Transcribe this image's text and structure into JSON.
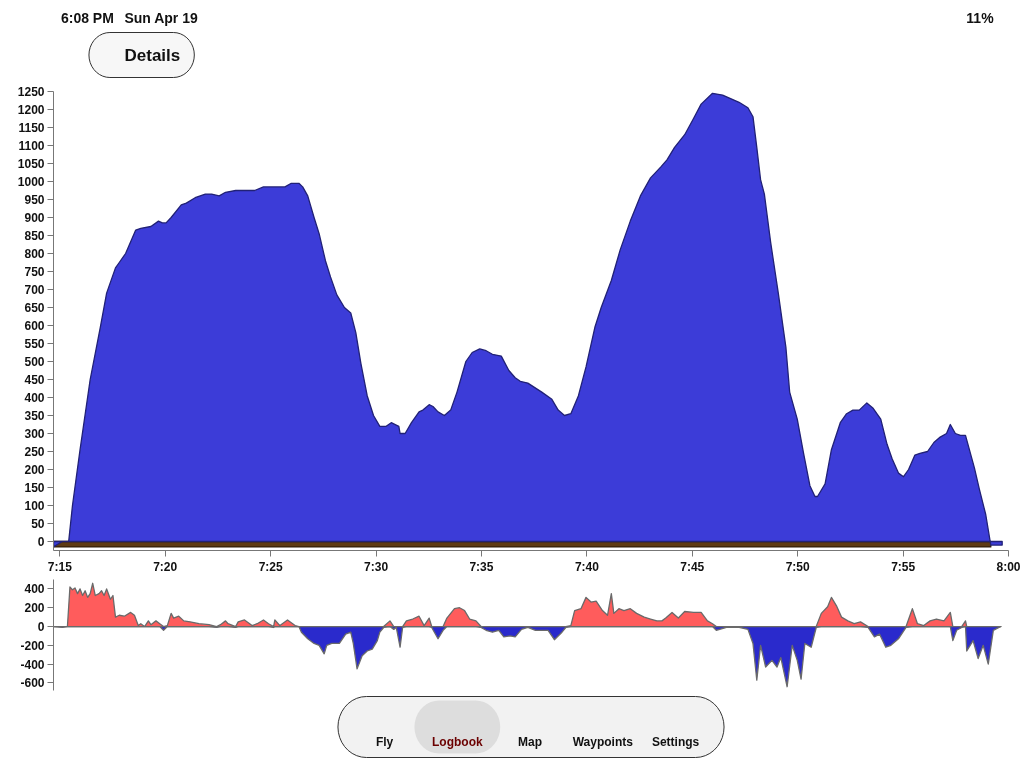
{
  "chart_data": [
    {
      "type": "area",
      "x": [
        7.245,
        7.252,
        7.256,
        7.257,
        7.26,
        7.266,
        7.274,
        7.282,
        7.287,
        7.294,
        7.297,
        7.302,
        7.31,
        7.314,
        7.322,
        7.328,
        7.331,
        7.334,
        7.338,
        7.346,
        7.35,
        7.357,
        7.365,
        7.37,
        7.376,
        7.381,
        7.389,
        7.396,
        7.404,
        7.411,
        7.42,
        7.428,
        7.433,
        7.439,
        7.442,
        7.446,
        7.451,
        7.455,
        7.46,
        7.464,
        7.469,
        7.475,
        7.48,
        7.484,
        7.488,
        7.493,
        7.498,
        7.503,
        7.508,
        7.512,
        7.518,
        7.519,
        7.523,
        7.528,
        7.534,
        7.537,
        7.542,
        7.545,
        7.549,
        7.554,
        7.559,
        7.564,
        7.571,
        7.576,
        7.582,
        7.587,
        7.592,
        7.599,
        7.605,
        7.61,
        7.614,
        7.62,
        7.631,
        7.639,
        7.644,
        7.649,
        7.654,
        7.66,
        7.666,
        7.673,
        7.678,
        7.686,
        7.693,
        7.701,
        7.709,
        7.717,
        7.725,
        7.73,
        7.736,
        7.744,
        7.751,
        7.757,
        7.766,
        7.774,
        7.787,
        7.794,
        7.798,
        7.801,
        7.804,
        7.807,
        7.812,
        7.818,
        7.824,
        7.827,
        7.833,
        7.838,
        7.843,
        7.847,
        7.849,
        7.855,
        7.86,
        7.867,
        7.872,
        7.877,
        7.882,
        7.888,
        7.893,
        7.899,
        7.904,
        7.908,
        7.913,
        7.917,
        7.921,
        7.926,
        7.93,
        7.936,
        7.941,
        7.946,
        7.951,
        7.954,
        7.958,
        7.962,
        7.966,
        7.973,
        7.977,
        7.982,
        7.986,
        7.995
      ],
      "series": [
        {
          "color": "#5e3a12",
          "x": [
            7.245,
            7.986
          ],
          "values": [
            -15,
            -15
          ]
        },
        {
          "color": "#3c3cd8",
          "values": [
            -15,
            0,
            0,
            0,
            100,
            255,
            450,
            595,
            690,
            760,
            775,
            800,
            865,
            870,
            875,
            890,
            885,
            885,
            900,
            935,
            940,
            955,
            965,
            965,
            960,
            970,
            975,
            975,
            975,
            985,
            985,
            985,
            995,
            995,
            985,
            960,
            900,
            855,
            780,
            735,
            685,
            650,
            635,
            580,
            495,
            405,
            350,
            320,
            320,
            330,
            320,
            300,
            300,
            330,
            360,
            365,
            380,
            375,
            360,
            350,
            365,
            415,
            500,
            525,
            535,
            530,
            520,
            515,
            475,
            455,
            445,
            440,
            415,
            395,
            365,
            350,
            355,
            405,
            485,
            595,
            650,
            725,
            810,
            890,
            960,
            1010,
            1040,
            1060,
            1095,
            1130,
            1175,
            1215,
            1245,
            1240,
            1220,
            1205,
            1180,
            1095,
            1005,
            965,
            830,
            690,
            540,
            415,
            340,
            245,
            155,
            125,
            125,
            160,
            255,
            330,
            355,
            365,
            365,
            385,
            370,
            340,
            270,
            230,
            190,
            180,
            200,
            240,
            245,
            250,
            275,
            290,
            300,
            325,
            300,
            295,
            295,
            205,
            145,
            75,
            -10,
            -10
          ]
        }
      ],
      "xlim": [
        7.245,
        8.0
      ],
      "ylim": [
        -25,
        1250
      ],
      "xticks": [
        {
          "value": 7.25,
          "label": "7:15"
        },
        {
          "value": 7.3333,
          "label": "7:20"
        },
        {
          "value": 7.4167,
          "label": "7:25"
        },
        {
          "value": 7.5,
          "label": "7:30"
        },
        {
          "value": 7.5833,
          "label": "7:35"
        },
        {
          "value": 7.6667,
          "label": "7:40"
        },
        {
          "value": 7.75,
          "label": "7:45"
        },
        {
          "value": 7.8333,
          "label": "7:50"
        },
        {
          "value": 7.9167,
          "label": "7:55"
        },
        {
          "value": 8.0,
          "label": "8:00"
        }
      ],
      "yticks": [
        0,
        50,
        100,
        150,
        200,
        250,
        300,
        350,
        400,
        450,
        500,
        550,
        600,
        650,
        700,
        750,
        800,
        850,
        900,
        950,
        1000,
        1050,
        1100,
        1150,
        1200,
        1250
      ],
      "annotations": [
        "6:08 PM",
        "Sun Apr 19",
        "11%",
        "Details"
      ]
    },
    {
      "type": "area",
      "x": [
        7.245,
        7.252,
        7.256,
        7.258,
        7.26,
        7.262,
        7.264,
        7.266,
        7.268,
        7.27,
        7.272,
        7.274,
        7.276,
        7.278,
        7.281,
        7.283,
        7.285,
        7.287,
        7.29,
        7.292,
        7.294,
        7.297,
        7.301,
        7.306,
        7.309,
        7.312,
        7.314,
        7.317,
        7.32,
        7.322,
        7.326,
        7.329,
        7.332,
        7.335,
        7.338,
        7.34,
        7.344,
        7.348,
        7.353,
        7.36,
        7.368,
        7.374,
        7.377,
        7.381,
        7.383,
        7.389,
        7.391,
        7.396,
        7.402,
        7.406,
        7.411,
        7.415,
        7.419,
        7.42,
        7.424,
        7.43,
        7.436,
        7.439,
        7.441,
        7.446,
        7.451,
        7.455,
        7.459,
        7.461,
        7.465,
        7.471,
        7.476,
        7.48,
        7.482,
        7.485,
        7.489,
        7.493,
        7.497,
        7.501,
        7.503,
        7.506,
        7.511,
        7.514,
        7.516,
        7.519,
        7.521,
        7.524,
        7.529,
        7.534,
        7.538,
        7.542,
        7.544,
        7.549,
        7.553,
        7.556,
        7.562,
        7.566,
        7.57,
        7.574,
        7.579,
        7.583,
        7.587,
        7.592,
        7.597,
        7.601,
        7.606,
        7.61,
        7.615,
        7.62,
        7.626,
        7.631,
        7.636,
        7.641,
        7.647,
        7.65,
        7.654,
        7.657,
        7.662,
        7.666,
        7.67,
        7.674,
        7.679,
        7.683,
        7.686,
        7.688,
        7.692,
        7.696,
        7.701,
        7.706,
        7.712,
        7.717,
        7.722,
        7.726,
        7.729,
        7.734,
        7.739,
        7.744,
        7.751,
        7.757,
        7.762,
        7.766,
        7.769,
        7.777,
        7.787,
        7.794,
        7.798,
        7.801,
        7.804,
        7.808,
        7.813,
        7.817,
        7.82,
        7.825,
        7.829,
        7.833,
        7.836,
        7.839,
        7.844,
        7.848,
        7.852,
        7.857,
        7.86,
        7.864,
        7.868,
        7.873,
        7.878,
        7.883,
        7.889,
        7.894,
        7.898,
        7.903,
        7.907,
        7.913,
        7.919,
        7.924,
        7.928,
        7.933,
        7.938,
        7.943,
        7.949,
        7.954,
        7.956,
        7.959,
        7.963,
        7.966,
        7.967,
        7.972,
        7.976,
        7.98,
        7.984,
        7.988,
        7.994
      ],
      "series": [
        {
          "color": "#ff5c5c",
          "values": [
            0,
            0,
            0,
            420,
            390,
            410,
            350,
            400,
            330,
            380,
            310,
            350,
            460,
            330,
            350,
            380,
            330,
            400,
            290,
            330,
            100,
            120,
            110,
            150,
            120,
            10,
            30,
            0,
            60,
            20,
            60,
            30,
            0,
            10,
            140,
            90,
            110,
            60,
            50,
            30,
            20,
            0,
            20,
            60,
            30,
            0,
            50,
            70,
            10,
            30,
            70,
            30,
            0,
            70,
            10,
            70,
            10,
            0,
            0,
            0,
            0,
            0,
            0,
            0,
            0,
            0,
            0,
            0,
            0,
            0,
            0,
            0,
            0,
            0,
            0,
            0,
            60,
            0,
            0,
            0,
            0,
            60,
            80,
            110,
            10,
            90,
            0,
            0,
            0,
            90,
            190,
            200,
            170,
            80,
            60,
            0,
            0,
            0,
            0,
            0,
            0,
            0,
            0,
            0,
            0,
            0,
            0,
            0,
            0,
            0,
            10,
            170,
            190,
            310,
            260,
            270,
            170,
            120,
            350,
            140,
            190,
            170,
            190,
            140,
            100,
            80,
            60,
            60,
            90,
            150,
            90,
            160,
            150,
            150,
            60,
            30,
            0,
            0,
            0,
            0,
            0,
            0,
            0,
            0,
            0,
            0,
            0,
            0,
            0,
            0,
            0,
            0,
            0,
            0,
            140,
            210,
            310,
            220,
            100,
            60,
            30,
            50,
            0,
            0,
            0,
            0,
            0,
            0,
            0,
            190,
            30,
            10,
            60,
            80,
            60,
            150,
            0,
            0,
            0,
            60,
            0,
            0,
            0,
            0,
            0,
            0,
            0
          ]
        },
        {
          "color": "#2a2acc",
          "values": [
            0,
            -10,
            0,
            0,
            0,
            0,
            0,
            0,
            0,
            0,
            0,
            0,
            0,
            0,
            0,
            0,
            0,
            0,
            0,
            0,
            0,
            0,
            0,
            0,
            0,
            0,
            0,
            0,
            0,
            0,
            0,
            0,
            -40,
            0,
            0,
            0,
            0,
            0,
            0,
            0,
            0,
            -10,
            0,
            0,
            0,
            -10,
            0,
            0,
            0,
            0,
            0,
            0,
            -10,
            0,
            0,
            0,
            0,
            0,
            -60,
            -130,
            -180,
            -200,
            -290,
            -200,
            -180,
            -180,
            -80,
            -60,
            -180,
            -450,
            -310,
            -260,
            -240,
            -150,
            -60,
            -10,
            0,
            -30,
            -10,
            -220,
            -10,
            0,
            0,
            0,
            0,
            0,
            -10,
            -130,
            -40,
            0,
            0,
            0,
            0,
            0,
            0,
            -10,
            -40,
            -60,
            -40,
            -110,
            -100,
            -110,
            -30,
            -10,
            -40,
            -40,
            -40,
            -140,
            -60,
            -10,
            0,
            0,
            0,
            0,
            0,
            0,
            0,
            0,
            0,
            0,
            0,
            0,
            0,
            0,
            0,
            0,
            0,
            0,
            0,
            0,
            0,
            0,
            0,
            0,
            0,
            0,
            -40,
            -10,
            -10,
            -30,
            -180,
            -570,
            -200,
            -430,
            -360,
            -430,
            -330,
            -640,
            -200,
            -360,
            -560,
            -180,
            -220,
            -10,
            0,
            0,
            0,
            0,
            0,
            0,
            0,
            0,
            -10,
            -110,
            -80,
            -220,
            -200,
            -130,
            -10,
            0,
            0,
            0,
            0,
            0,
            0,
            0,
            -150,
            -40,
            -10,
            0,
            -260,
            -150,
            -340,
            -200,
            -400,
            -40,
            0
          ]
        }
      ],
      "xlim": [
        7.245,
        8.0
      ],
      "ylim": [
        -680,
        500
      ],
      "yticks": [
        -600,
        -400,
        -200,
        0,
        200,
        400
      ],
      "tick_labels": "y",
      "annotations": [
        "Fly",
        "Logbook",
        "Map",
        "Waypoints",
        "Settings"
      ]
    }
  ]
}
